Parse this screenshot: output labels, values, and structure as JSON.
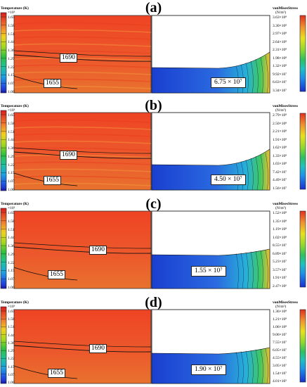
{
  "colors": {
    "temp_field": "#e8542c",
    "temp_field_top": "#ef4a25",
    "stress_low": "#1f4fd6",
    "stress_high": "#f0a040"
  },
  "panels": [
    {
      "label": "(a)",
      "temp_legend": {
        "title": "Temperature (K)",
        "unit": "×10³",
        "ticks": [
          "1.65",
          "1.58",
          "1.51",
          "1.44",
          "1.36",
          "1.29",
          "1.22",
          "1.15",
          "1.07",
          "1.00"
        ]
      },
      "stress_legend": {
        "title": "vonMisesStress",
        "unit": "(N/m²)",
        "ticks": [
          "3.63×10⁸",
          "3.30×10⁸",
          "2.97×10⁸",
          "2.64×10⁸",
          "2.31×10⁸",
          "1.98×10⁸",
          "1.32×10⁸",
          "9.92×10⁷",
          "6.63×10⁷",
          "3.34×10⁷"
        ]
      },
      "isotherms": [
        "1690",
        "1655"
      ],
      "stress_value": "6.75 × 10⁷"
    },
    {
      "label": "(b)",
      "temp_legend": {
        "title": "Temperature (K)",
        "unit": "×10³",
        "ticks": [
          "1.65",
          "1.58",
          "1.51",
          "1.44",
          "1.36",
          "1.29",
          "1.22",
          "1.15",
          "1.07",
          "1.00"
        ]
      },
      "stress_legend": {
        "title": "vonMisesStress",
        "unit": "(N/m²)",
        "ticks": [
          "2.79×10⁸",
          "2.50×10⁸",
          "2.21×10⁸",
          "1.91×10⁸",
          "1.62×10⁸",
          "1.33×10⁸",
          "1.03×10⁸",
          "7.42×10⁷",
          "4.49×10⁷",
          "1.56×10⁷"
        ]
      },
      "isotherms": [
        "1690",
        "1655"
      ],
      "stress_value": "4.50 × 10⁷"
    },
    {
      "label": "(c)",
      "temp_legend": {
        "title": "Temperature (K)",
        "unit": "×10³",
        "ticks": [
          "1.65",
          "1.58",
          "1.51",
          "1.44",
          "1.36",
          "1.29",
          "1.22",
          "1.15",
          "1.07",
          "1.00"
        ]
      },
      "stress_legend": {
        "title": "vonMisesStress",
        "unit": "(N/m²)",
        "ticks": [
          "1.52×10⁸",
          "1.35×10⁸",
          "1.19×10⁸",
          "1.02×10⁸",
          "8.55×10⁷",
          "6.89×10⁷",
          "5.23×10⁷",
          "3.57×10⁷",
          "1.91×10⁷",
          "2.47×10⁶"
        ]
      },
      "isotherms": [
        "1690",
        "1655"
      ],
      "stress_value": "1.55 × 10⁷"
    },
    {
      "label": "(d)",
      "temp_legend": {
        "title": "Temperature (K)",
        "unit": "×10³",
        "ticks": [
          "1.65",
          "1.58",
          "1.51",
          "1.44",
          "1.36",
          "1.29",
          "1.22",
          "1.15",
          "1.07",
          "1.00"
        ]
      },
      "stress_legend": {
        "title": "vonMisesStress",
        "unit": "(N/m²)",
        "ticks": [
          "1.36×10⁸",
          "1.21×10⁸",
          "1.06×10⁸",
          "9.06×10⁷",
          "7.55×10⁷",
          "6.05×10⁷",
          "4.55×10⁷",
          "3.05×10⁷",
          "1.54×10⁷",
          "4.01×10⁵"
        ]
      },
      "isotherms": [
        "1690",
        "1655"
      ],
      "stress_value": "1.90 × 10⁷"
    }
  ]
}
